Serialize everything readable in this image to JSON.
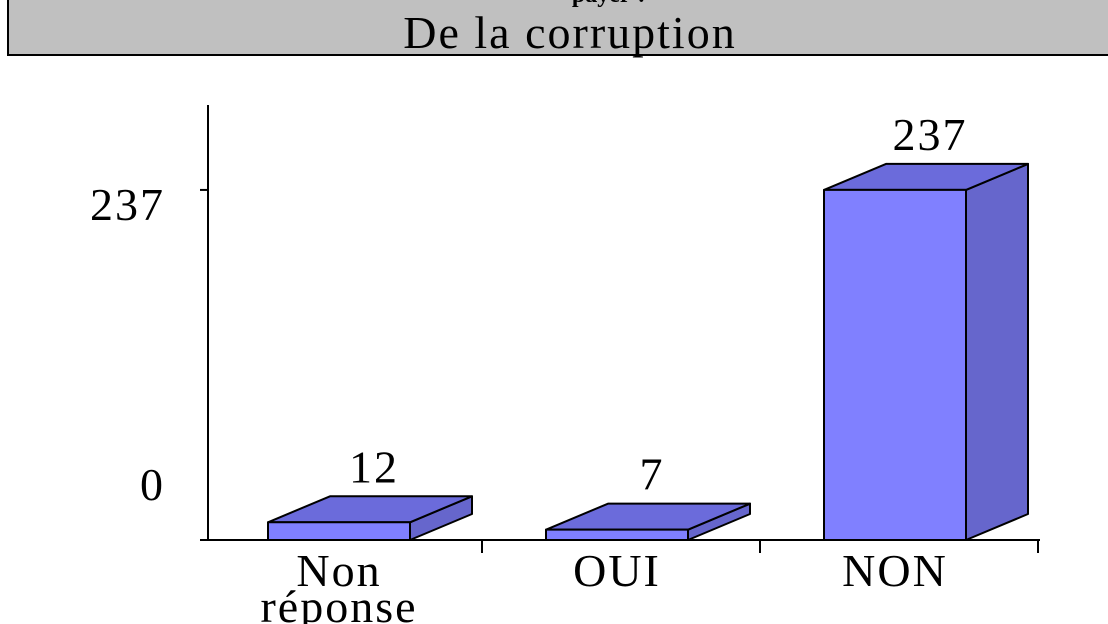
{
  "chart_data": {
    "type": "bar3d",
    "overtitle": "payer ?",
    "title": "De la corruption",
    "categories": [
      "Non réponse",
      "OUI",
      "NON"
    ],
    "values": [
      12,
      7,
      237
    ],
    "colors": {
      "front": "#8080ff",
      "top": "#6b6bdb",
      "side": "#6666cc"
    },
    "ylim": [
      0,
      294.5
    ],
    "yticks": [
      0,
      237
    ]
  }
}
